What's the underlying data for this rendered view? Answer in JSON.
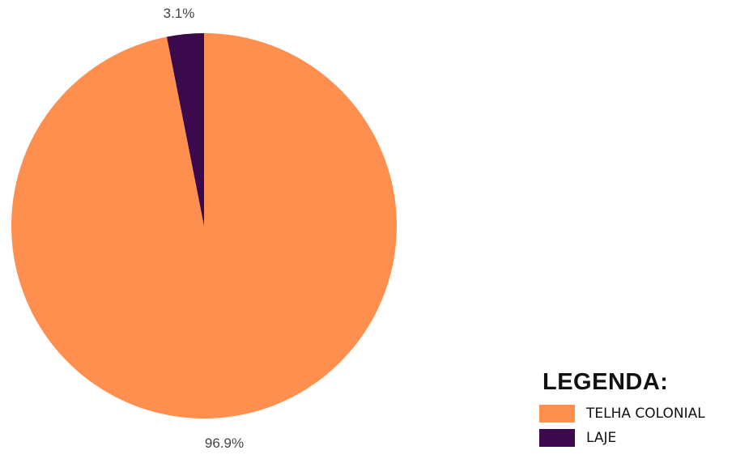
{
  "chart_data": {
    "type": "pie",
    "categories": [
      "TELHA COLONIAL",
      "LAJE"
    ],
    "values": [
      96.9,
      3.1
    ],
    "labels": [
      "96.9%",
      "3.1%"
    ],
    "colors": [
      "#FF8F4F",
      "#3B0A4C"
    ],
    "legend": {
      "title": "LEGENDA:",
      "placement": "bottom-right",
      "items": [
        "TELHA COLONIAL",
        "LAJE"
      ]
    }
  }
}
